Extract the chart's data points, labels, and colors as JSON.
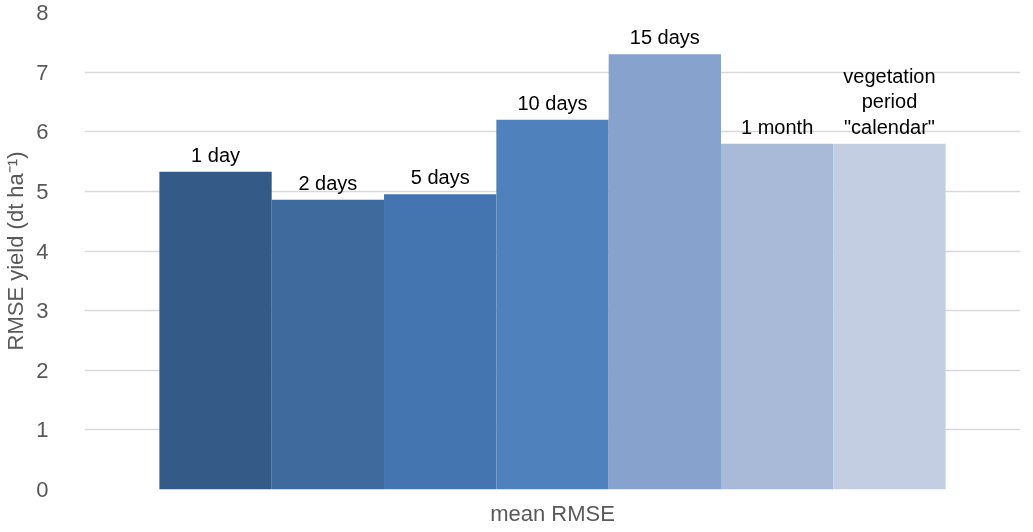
{
  "chart_data": {
    "type": "bar",
    "ylabel": "RMSE yield (dt ha⁻¹)",
    "categories": [
      "mean RMSE"
    ],
    "ylim": [
      0,
      8
    ],
    "yticks": [
      0,
      1,
      2,
      3,
      4,
      5,
      6,
      7,
      8
    ],
    "grid": "y",
    "series": [
      {
        "name": "1 day",
        "color": "#345a87",
        "values": [
          5.33
        ]
      },
      {
        "name": "2 days",
        "color": "#3f6a9e",
        "values": [
          4.86
        ]
      },
      {
        "name": "5 days",
        "color": "#4575b0",
        "values": [
          4.95
        ]
      },
      {
        "name": "10 days",
        "color": "#4f81bd",
        "values": [
          6.2
        ]
      },
      {
        "name": "15 days",
        "color": "#86a2cd",
        "values": [
          7.3
        ]
      },
      {
        "name": "1 month",
        "color": "#a9b9d8",
        "values": [
          5.8
        ]
      },
      {
        "name": "vegetation\nperiod\n\"calendar\"",
        "color": "#c4cee2",
        "values": [
          5.8
        ]
      }
    ]
  }
}
